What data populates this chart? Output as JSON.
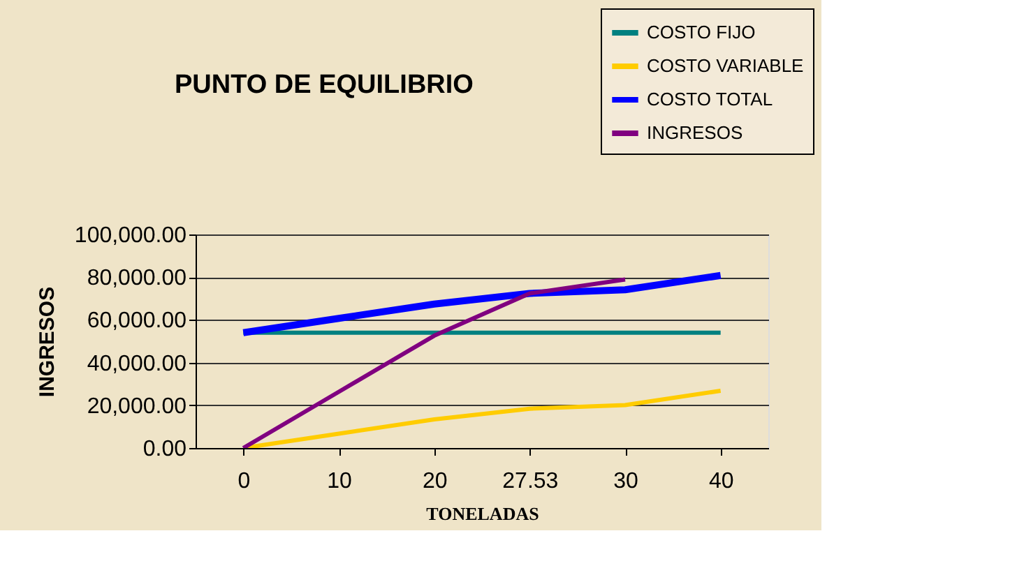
{
  "chart_data": {
    "type": "line",
    "title": "PUNTO DE EQUILIBRIO",
    "xlabel": "TONELADAS",
    "ylabel": "INGRESOS",
    "categories": [
      "0",
      "10",
      "20",
      "27.53",
      "30",
      "40"
    ],
    "series": [
      {
        "name": "COSTO FIJO",
        "color": "#008080",
        "values": [
          54000,
          54000,
          54000,
          54000,
          54000,
          54000
        ]
      },
      {
        "name": "COSTO VARIABLE",
        "color": "#ffcc00",
        "values": [
          0,
          6700,
          13400,
          18400,
          20100,
          26800
        ]
      },
      {
        "name": "COSTO TOTAL",
        "color": "#0000ff",
        "values": [
          54000,
          60700,
          67400,
          72400,
          74100,
          80800
        ]
      },
      {
        "name": "INGRESOS",
        "color": "#800080",
        "values": [
          0,
          26300,
          52600,
          72400,
          78900,
          null
        ]
      }
    ],
    "ylim": [
      0,
      100000
    ],
    "yticks": [
      {
        "value": 0,
        "label": "0.00"
      },
      {
        "value": 20000,
        "label": "20,000.00"
      },
      {
        "value": 40000,
        "label": "40,000.00"
      },
      {
        "value": 60000,
        "label": "60,000.00"
      },
      {
        "value": 80000,
        "label": "80,000.00"
      },
      {
        "value": 100000,
        "label": "100,000.00"
      }
    ],
    "grid": "y",
    "legend": "top right",
    "marker": "none",
    "line_style": "solid"
  }
}
